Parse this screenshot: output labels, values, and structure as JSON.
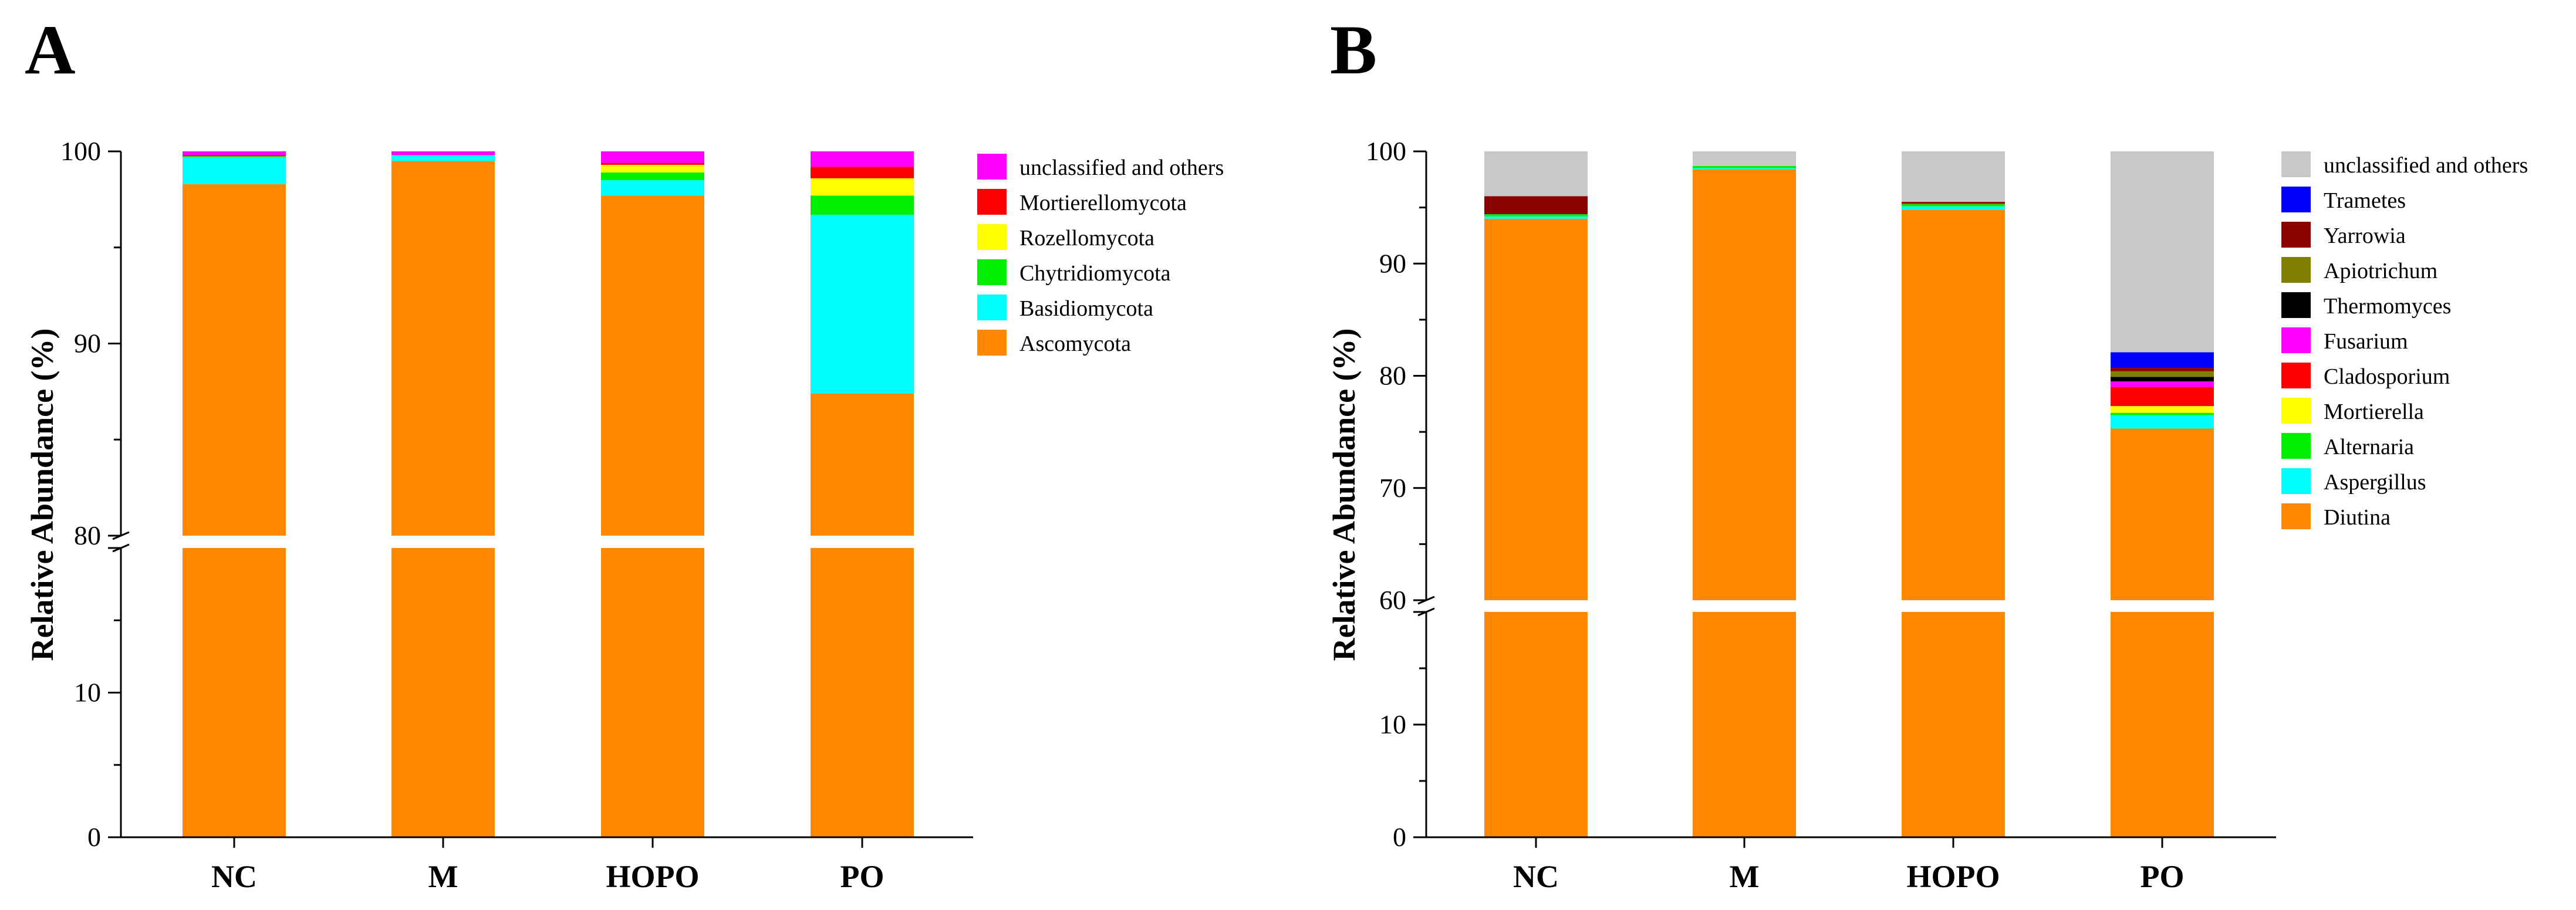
{
  "chart_data": [
    {
      "panel": "A",
      "type": "bar",
      "stacked": true,
      "broken_axis": true,
      "ylabel": "Relative Abundance (%)",
      "xlabel": "",
      "categories": [
        "NC",
        "M",
        "HOPO",
        "PO"
      ],
      "lower_ticks": [
        "0",
        "10"
      ],
      "upper_ticks": [
        "80",
        "90",
        "100"
      ],
      "lower_range": [
        0,
        20
      ],
      "upper_range": [
        80,
        100
      ],
      "series": [
        {
          "name": "Ascomycota",
          "color": "#FF8800",
          "values": [
            98.3,
            99.5,
            97.7,
            87.4
          ]
        },
        {
          "name": "Basidiomycota",
          "color": "#00FFFF",
          "values": [
            1.4,
            0.3,
            0.8,
            9.3
          ]
        },
        {
          "name": "Chytridiomycota",
          "color": "#00EE00",
          "values": [
            0.05,
            0,
            0.4,
            1.0
          ]
        },
        {
          "name": "Rozellomycota",
          "color": "#FFFF00",
          "values": [
            0,
            0,
            0.4,
            0.9
          ]
        },
        {
          "name": "Mortierellomycota",
          "color": "#FF0000",
          "values": [
            0.05,
            0,
            0.1,
            0.6
          ]
        },
        {
          "name": "unclassified and others",
          "color": "#FF00FF",
          "values": [
            0.2,
            0.2,
            0.6,
            0.8
          ]
        }
      ]
    },
    {
      "panel": "B",
      "type": "bar",
      "stacked": true,
      "broken_axis": true,
      "ylabel": "Relative Abundance (%)",
      "xlabel": "",
      "categories": [
        "NC",
        "M",
        "HOPO",
        "PO"
      ],
      "lower_ticks": [
        "0",
        "10"
      ],
      "upper_ticks": [
        "60",
        "70",
        "80",
        "90",
        "100"
      ],
      "lower_range": [
        0,
        20
      ],
      "upper_range": [
        60,
        100
      ],
      "series": [
        {
          "name": "Diutina",
          "color": "#FF8800",
          "values": [
            94.0,
            98.4,
            94.8,
            75.3
          ]
        },
        {
          "name": "Aspergillus",
          "color": "#00FFFF",
          "values": [
            0.2,
            0.1,
            0.3,
            1.2
          ]
        },
        {
          "name": "Alternaria",
          "color": "#00EE00",
          "values": [
            0.2,
            0.2,
            0.2,
            0.2
          ]
        },
        {
          "name": "Mortierella",
          "color": "#FFFF00",
          "values": [
            0,
            0,
            0,
            0.6
          ]
        },
        {
          "name": "Cladosporium",
          "color": "#FF0000",
          "values": [
            0,
            0,
            0.1,
            1.7
          ]
        },
        {
          "name": "Fusarium",
          "color": "#FF00FF",
          "values": [
            0,
            0,
            0,
            0.5
          ]
        },
        {
          "name": "Thermomyces",
          "color": "#000000",
          "values": [
            0,
            0,
            0,
            0.4
          ]
        },
        {
          "name": "Apiotrichum",
          "color": "#808000",
          "values": [
            0,
            0,
            0,
            0.5
          ]
        },
        {
          "name": "Yarrowia",
          "color": "#8B0000",
          "values": [
            1.6,
            0,
            0.1,
            0.3
          ]
        },
        {
          "name": "Trametes",
          "color": "#0000FF",
          "values": [
            0,
            0,
            0,
            1.4
          ]
        },
        {
          "name": "unclassified and others",
          "color": "#C8C8C8",
          "values": [
            4.0,
            1.3,
            4.5,
            17.9
          ]
        }
      ]
    }
  ]
}
